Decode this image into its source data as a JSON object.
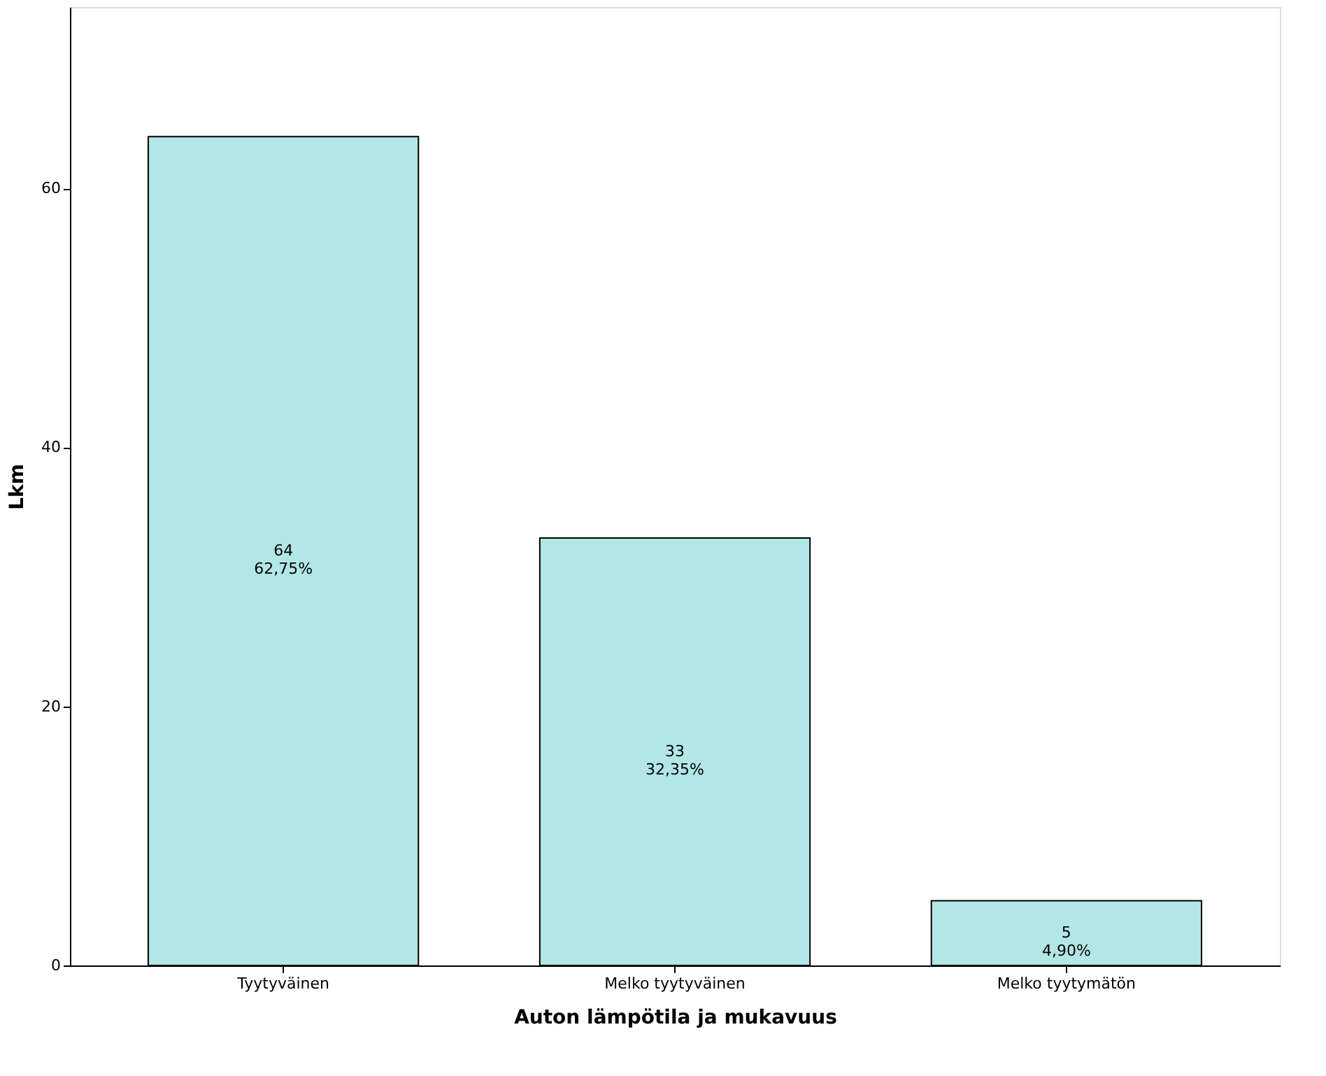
{
  "chart_data": {
    "type": "bar",
    "xlabel": "Auton lämpötila ja mukavuus",
    "ylabel": "Lkm",
    "categories": [
      "Tyytyväinen",
      "Melko tyytyväinen",
      "Melko tyytymätön"
    ],
    "values": [
      64,
      33,
      5
    ],
    "color": "#b3e6e6",
    "value_labels": [
      "64\n62,75%",
      "33\n32,35%",
      "5\n4,90%"
    ],
    "ylim": [
      0,
      74
    ],
    "yticks": [
      0,
      20,
      40,
      60
    ],
    "grid": false
  }
}
